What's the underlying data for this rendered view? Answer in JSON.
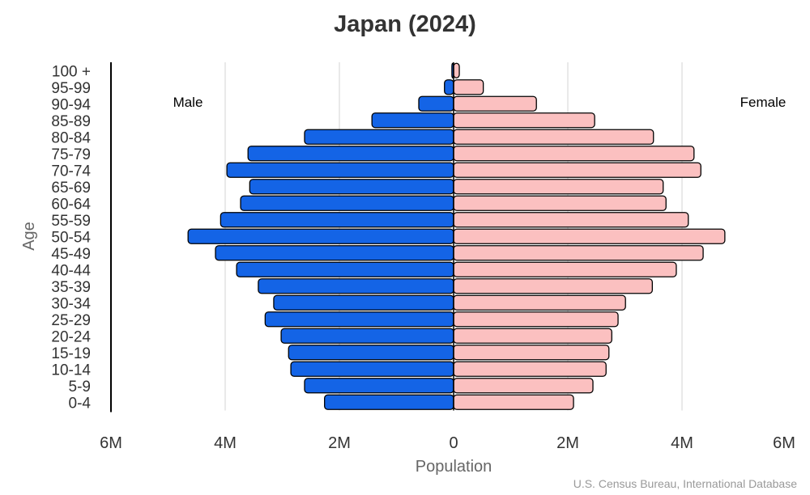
{
  "chart_data": {
    "type": "bar",
    "orientation": "horizontal-population-pyramid",
    "title": "Japan (2024)",
    "xlabel": "Population",
    "ylabel": "Age",
    "source": "U.S. Census Bureau, International Database",
    "categories": [
      "100 +",
      "95-99",
      "90-94",
      "85-89",
      "80-84",
      "75-79",
      "70-74",
      "65-69",
      "60-64",
      "55-59",
      "50-54",
      "45-49",
      "40-44",
      "35-39",
      "30-34",
      "25-29",
      "20-24",
      "15-19",
      "10-14",
      "5-9",
      "0-4"
    ],
    "series": [
      {
        "name": "Male",
        "color": "#1464e6",
        "values": [
          0.03,
          0.16,
          0.61,
          1.43,
          2.61,
          3.6,
          3.97,
          3.57,
          3.73,
          4.08,
          4.65,
          4.17,
          3.8,
          3.42,
          3.15,
          3.3,
          3.02,
          2.89,
          2.85,
          2.61,
          2.26
        ]
      },
      {
        "name": "Female",
        "color": "#fbc0c0",
        "values": [
          0.1,
          0.52,
          1.45,
          2.47,
          3.5,
          4.21,
          4.33,
          3.67,
          3.72,
          4.11,
          4.75,
          4.37,
          3.9,
          3.48,
          3.01,
          2.88,
          2.77,
          2.72,
          2.67,
          2.44,
          2.1
        ]
      }
    ],
    "value_unit": "millions",
    "xlim": [
      -6,
      6
    ],
    "x_ticks": [
      {
        "value": -6,
        "label": "6M"
      },
      {
        "value": -4,
        "label": "4M"
      },
      {
        "value": -2,
        "label": "2M"
      },
      {
        "value": 0,
        "label": "0"
      },
      {
        "value": 2,
        "label": "2M"
      },
      {
        "value": 4,
        "label": "4M"
      },
      {
        "value": 6,
        "label": "6M"
      }
    ],
    "grid": true,
    "legend": "inline labels top-left and top-right"
  }
}
